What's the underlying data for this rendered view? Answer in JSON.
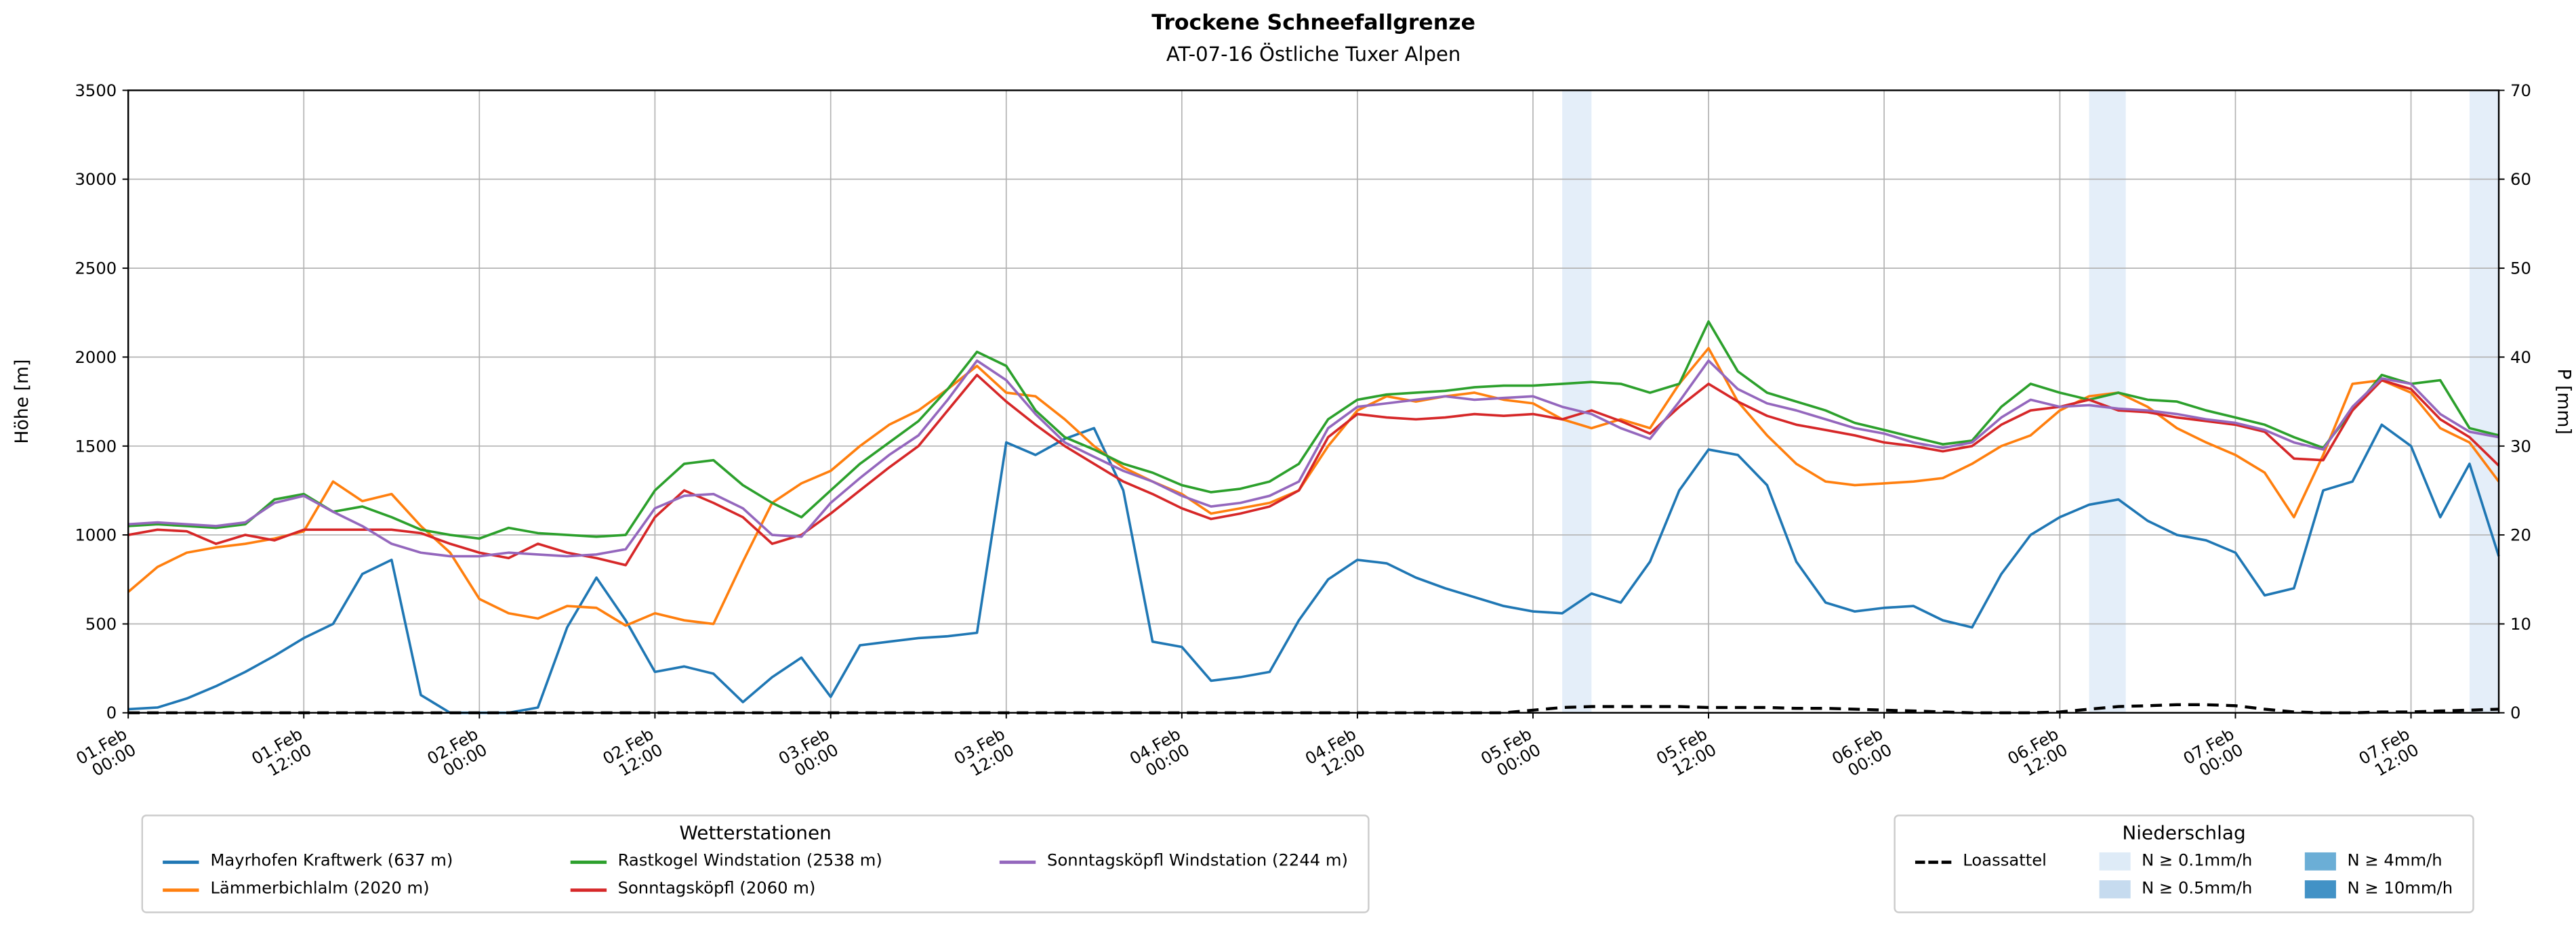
{
  "chart_data": {
    "type": "line",
    "title": "Trockene Schneefallgrenze",
    "subtitle": "AT-07-16 Östliche Tuxer Alpen",
    "ylabel_left": "Höhe [m]",
    "ylabel_right": "P [mm]",
    "ylim_left": [
      0,
      3500
    ],
    "ylim_right": [
      0,
      70
    ],
    "yticks_left": [
      0,
      500,
      1000,
      1500,
      2000,
      2500,
      3000,
      3500
    ],
    "yticks_right": [
      0,
      10,
      20,
      30,
      40,
      50,
      60,
      70
    ],
    "grid": true,
    "legend_position": "below",
    "x_unit": "hours since 01.Feb 00:00",
    "x_step": 2,
    "x_max": 162,
    "x_ticks": [
      {
        "h": 0,
        "date": "01.Feb",
        "time": "00:00"
      },
      {
        "h": 12,
        "date": "01.Feb",
        "time": "12:00"
      },
      {
        "h": 24,
        "date": "02.Feb",
        "time": "00:00"
      },
      {
        "h": 36,
        "date": "02.Feb",
        "time": "12:00"
      },
      {
        "h": 48,
        "date": "03.Feb",
        "time": "00:00"
      },
      {
        "h": 60,
        "date": "03.Feb",
        "time": "12:00"
      },
      {
        "h": 72,
        "date": "04.Feb",
        "time": "00:00"
      },
      {
        "h": 84,
        "date": "04.Feb",
        "time": "12:00"
      },
      {
        "h": 96,
        "date": "05.Feb",
        "time": "00:00"
      },
      {
        "h": 108,
        "date": "05.Feb",
        "time": "12:00"
      },
      {
        "h": 120,
        "date": "06.Feb",
        "time": "00:00"
      },
      {
        "h": 132,
        "date": "06.Feb",
        "time": "12:00"
      },
      {
        "h": 144,
        "date": "07.Feb",
        "time": "00:00"
      },
      {
        "h": 156,
        "date": "07.Feb",
        "time": "12:00"
      }
    ],
    "series": [
      {
        "name": "Mayrhofen Kraftwerk (637 m)",
        "color": "#1f77b4",
        "values": [
          20,
          30,
          80,
          150,
          230,
          320,
          420,
          500,
          780,
          860,
          100,
          0,
          0,
          0,
          30,
          480,
          760,
          520,
          230,
          260,
          220,
          60,
          200,
          310,
          90,
          380,
          400,
          420,
          430,
          450,
          1520,
          1450,
          1540,
          1600,
          1250,
          400,
          370,
          180,
          200,
          230,
          520,
          750,
          860,
          840,
          760,
          700,
          650,
          600,
          570,
          560,
          670,
          620,
          850,
          1250,
          1480,
          1450,
          1280,
          850,
          620,
          570,
          590,
          600,
          520,
          480,
          780,
          1000,
          1100,
          1170,
          1200,
          1080,
          1000,
          970,
          900,
          660,
          700,
          1250,
          1300,
          1620,
          1500,
          1100,
          1400,
          880
        ]
      },
      {
        "name": "Lämmerbichlalm (2020 m)",
        "color": "#ff7f0e",
        "values": [
          680,
          820,
          900,
          930,
          950,
          980,
          1020,
          1300,
          1190,
          1230,
          1050,
          900,
          640,
          560,
          530,
          600,
          590,
          490,
          560,
          520,
          500,
          850,
          1180,
          1290,
          1360,
          1500,
          1620,
          1700,
          1820,
          1950,
          1800,
          1780,
          1650,
          1500,
          1380,
          1300,
          1230,
          1120,
          1150,
          1180,
          1250,
          1500,
          1700,
          1780,
          1750,
          1780,
          1800,
          1760,
          1740,
          1650,
          1600,
          1650,
          1600,
          1850,
          2050,
          1750,
          1560,
          1400,
          1300,
          1280,
          1290,
          1300,
          1320,
          1400,
          1500,
          1560,
          1700,
          1780,
          1800,
          1720,
          1600,
          1520,
          1450,
          1350,
          1100,
          1450,
          1850,
          1870,
          1800,
          1600,
          1520,
          1300
        ]
      },
      {
        "name": "Rastkogel Windstation (2538 m)",
        "color": "#2ca02c",
        "values": [
          1050,
          1060,
          1050,
          1040,
          1060,
          1200,
          1230,
          1130,
          1160,
          1100,
          1030,
          1000,
          980,
          1040,
          1010,
          1000,
          990,
          1000,
          1250,
          1400,
          1420,
          1280,
          1180,
          1100,
          1250,
          1400,
          1520,
          1640,
          1820,
          2030,
          1950,
          1700,
          1550,
          1480,
          1400,
          1350,
          1280,
          1240,
          1260,
          1300,
          1400,
          1650,
          1760,
          1790,
          1800,
          1810,
          1830,
          1840,
          1840,
          1850,
          1860,
          1850,
          1800,
          1850,
          2200,
          1920,
          1800,
          1750,
          1700,
          1630,
          1590,
          1550,
          1510,
          1530,
          1720,
          1850,
          1800,
          1760,
          1800,
          1760,
          1750,
          1700,
          1660,
          1620,
          1550,
          1490,
          1700,
          1900,
          1850,
          1870,
          1600,
          1560
        ]
      },
      {
        "name": "Sonntagsköpfl (2060 m)",
        "color": "#d62728",
        "values": [
          1000,
          1030,
          1020,
          950,
          1000,
          970,
          1030,
          1030,
          1030,
          1030,
          1010,
          950,
          900,
          870,
          950,
          900,
          870,
          830,
          1100,
          1250,
          1180,
          1100,
          950,
          1000,
          1120,
          1250,
          1380,
          1500,
          1700,
          1900,
          1750,
          1620,
          1500,
          1400,
          1300,
          1230,
          1150,
          1090,
          1120,
          1160,
          1250,
          1550,
          1680,
          1660,
          1650,
          1660,
          1680,
          1670,
          1680,
          1650,
          1700,
          1640,
          1570,
          1720,
          1850,
          1750,
          1670,
          1620,
          1590,
          1560,
          1520,
          1500,
          1470,
          1500,
          1620,
          1700,
          1720,
          1760,
          1700,
          1690,
          1660,
          1640,
          1620,
          1580,
          1430,
          1420,
          1700,
          1870,
          1820,
          1650,
          1550,
          1390
        ]
      },
      {
        "name": "Sonntagsköpfl Windstation (2244 m)",
        "color": "#9467bd",
        "values": [
          1060,
          1070,
          1060,
          1050,
          1070,
          1180,
          1220,
          1130,
          1050,
          950,
          900,
          880,
          880,
          900,
          890,
          880,
          890,
          920,
          1150,
          1220,
          1230,
          1150,
          1000,
          990,
          1180,
          1320,
          1450,
          1560,
          1760,
          1980,
          1870,
          1680,
          1520,
          1440,
          1360,
          1300,
          1220,
          1160,
          1180,
          1220,
          1300,
          1600,
          1720,
          1740,
          1760,
          1780,
          1760,
          1770,
          1780,
          1720,
          1680,
          1600,
          1540,
          1750,
          1980,
          1820,
          1740,
          1700,
          1650,
          1600,
          1570,
          1520,
          1490,
          1520,
          1660,
          1760,
          1720,
          1730,
          1710,
          1700,
          1680,
          1650,
          1630,
          1590,
          1520,
          1480,
          1720,
          1880,
          1850,
          1680,
          1580,
          1550
        ]
      }
    ],
    "precip_line": {
      "name": "Loassattel",
      "color": "#000000",
      "style": "dashed",
      "axis": "right",
      "values": [
        0,
        0,
        0,
        0,
        0,
        0,
        0,
        0,
        0,
        0,
        0,
        0,
        0,
        0,
        0,
        0,
        0,
        0,
        0,
        0,
        0,
        0,
        0,
        0,
        0,
        0,
        0,
        0,
        0,
        0,
        0,
        0,
        0,
        0,
        0,
        0,
        0,
        0,
        0,
        0,
        0,
        0,
        0,
        0,
        0,
        0,
        0,
        0,
        0.3,
        0.6,
        0.7,
        0.7,
        0.7,
        0.7,
        0.6,
        0.6,
        0.6,
        0.5,
        0.5,
        0.4,
        0.3,
        0.2,
        0.1,
        0,
        0,
        0,
        0.1,
        0.4,
        0.7,
        0.8,
        0.9,
        0.9,
        0.8,
        0.4,
        0.1,
        0,
        0,
        0.1,
        0.1,
        0.2,
        0.3,
        0.4
      ]
    },
    "precip_bands": [
      {
        "start_h": 98,
        "end_h": 100,
        "label": "N ≥ 0.1mm/h",
        "color": "#e4eef9"
      },
      {
        "start_h": 134,
        "end_h": 136.5,
        "label": "N ≥ 0.1mm/h",
        "color": "#e4eef9"
      },
      {
        "start_h": 160,
        "end_h": 162,
        "label": "N ≥ 0.1mm/h",
        "color": "#e4eef9"
      }
    ]
  },
  "legend_stations": {
    "title": "Wetterstationen"
  },
  "legend_precip": {
    "title": "Niederschlag",
    "line_label": "Loassattel",
    "patches": [
      {
        "label": "N ≥ 0.1mm/h",
        "color": "#deebf7"
      },
      {
        "label": "N ≥ 0.5mm/h",
        "color": "#c6dbef"
      },
      {
        "label": "N ≥ 4mm/h",
        "color": "#6baed6"
      },
      {
        "label": "N ≥ 10mm/h",
        "color": "#4292c6"
      }
    ]
  }
}
